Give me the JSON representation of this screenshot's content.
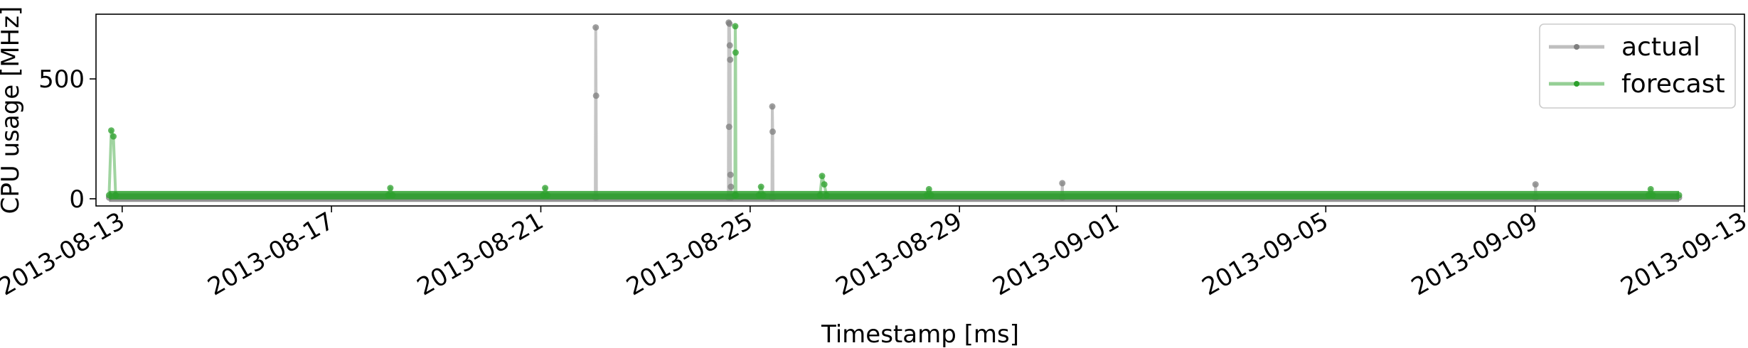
{
  "chart_data": {
    "type": "line",
    "title": "",
    "xlabel": "Timestamp [ms]",
    "ylabel": "CPU usage [MHz]",
    "x_range": [
      "2013-08-12T12:00",
      "2013-09-13T00:00"
    ],
    "ylim": [
      -30,
      770
    ],
    "x_ticks": [
      "2013-08-13",
      "2013-08-17",
      "2013-08-21",
      "2013-08-25",
      "2013-08-29",
      "2013-09-01",
      "2013-09-05",
      "2013-09-09",
      "2013-09-13"
    ],
    "y_ticks": [
      0,
      500
    ],
    "grid": false,
    "legend_position": "top-right",
    "series": [
      {
        "name": "actual",
        "color": "#7f7f7f",
        "baseline_range": [
          "2013-08-12T18:00",
          "2013-09-11T18:00"
        ],
        "baseline_value": 5,
        "points": [
          [
            "2013-08-12T18:00",
            5
          ],
          [
            "2013-08-22T01:00",
            5
          ],
          [
            "2013-08-22T01:10",
            715
          ],
          [
            "2013-08-22T01:20",
            430
          ],
          [
            "2013-08-22T01:30",
            5
          ],
          [
            "2013-08-24T14:00",
            5
          ],
          [
            "2013-08-24T14:10",
            735
          ],
          [
            "2013-08-24T14:20",
            300
          ],
          [
            "2013-08-24T14:30",
            730
          ],
          [
            "2013-08-24T14:40",
            640
          ],
          [
            "2013-08-24T14:50",
            580
          ],
          [
            "2013-08-24T15:00",
            100
          ],
          [
            "2013-08-24T15:10",
            50
          ],
          [
            "2013-08-24T15:20",
            5
          ],
          [
            "2013-08-25T10:00",
            5
          ],
          [
            "2013-08-25T10:10",
            385
          ],
          [
            "2013-08-25T10:20",
            280
          ],
          [
            "2013-08-25T10:30",
            5
          ],
          [
            "2013-08-30T23:00",
            5
          ],
          [
            "2013-08-30T23:10",
            65
          ],
          [
            "2013-08-30T23:20",
            5
          ],
          [
            "2013-09-09T00:00",
            5
          ],
          [
            "2013-09-09T00:10",
            60
          ],
          [
            "2013-09-09T00:20",
            5
          ],
          [
            "2013-09-11T18:00",
            5
          ]
        ]
      },
      {
        "name": "forecast",
        "color": "#2ca02c",
        "baseline_range": [
          "2013-08-12T18:00",
          "2013-09-11T18:00"
        ],
        "baseline_value": 15,
        "points": [
          [
            "2013-08-12T18:00",
            15
          ],
          [
            "2013-08-12T19:00",
            285
          ],
          [
            "2013-08-12T20:00",
            260
          ],
          [
            "2013-08-12T21:00",
            15
          ],
          [
            "2013-08-18T02:00",
            15
          ],
          [
            "2013-08-18T03:00",
            45
          ],
          [
            "2013-08-18T04:00",
            15
          ],
          [
            "2013-08-21T01:00",
            15
          ],
          [
            "2013-08-21T02:00",
            45
          ],
          [
            "2013-08-21T03:00",
            15
          ],
          [
            "2013-08-24T17:00",
            15
          ],
          [
            "2013-08-24T17:10",
            720
          ],
          [
            "2013-08-24T17:20",
            610
          ],
          [
            "2013-08-24T17:30",
            15
          ],
          [
            "2013-08-25T04:00",
            15
          ],
          [
            "2013-08-25T05:00",
            50
          ],
          [
            "2013-08-25T06:00",
            15
          ],
          [
            "2013-08-26T08:00",
            15
          ],
          [
            "2013-08-26T09:00",
            95
          ],
          [
            "2013-08-26T10:00",
            60
          ],
          [
            "2013-08-26T11:00",
            15
          ],
          [
            "2013-08-28T09:00",
            15
          ],
          [
            "2013-08-28T10:00",
            40
          ],
          [
            "2013-08-28T11:00",
            15
          ],
          [
            "2013-09-11T04:00",
            15
          ],
          [
            "2013-09-11T05:00",
            40
          ],
          [
            "2013-09-11T06:00",
            15
          ],
          [
            "2013-09-11T18:00",
            15
          ]
        ]
      }
    ]
  }
}
